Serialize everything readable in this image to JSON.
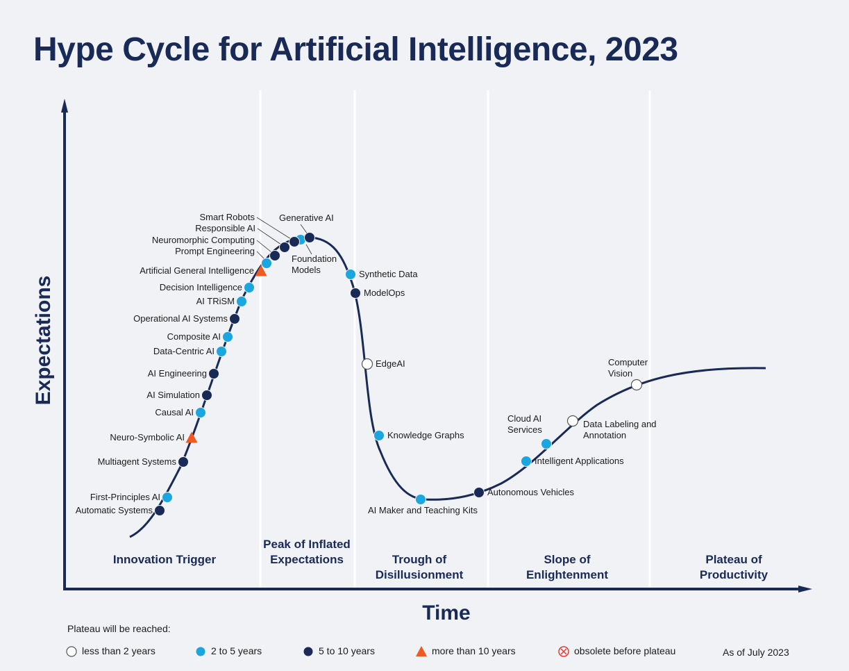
{
  "title": "Hype Cycle for Artificial Intelligence, 2023",
  "axes": {
    "y": "Expectations",
    "x": "Time"
  },
  "phases": [
    "Innovation Trigger",
    "Peak of Inflated Expectations",
    "Trough of Disillusionment",
    "Slope of Enlightenment",
    "Plateau of Productivity"
  ],
  "legend": {
    "heading": "Plateau will be reached:",
    "items": [
      {
        "label": "less than 2 years",
        "marker": "open-circle",
        "color": "#ffffff",
        "technologies": [
          "EdgeAI",
          "Data Labeling and Annotation",
          "Computer Vision"
        ]
      },
      {
        "label": "2 to 5 years",
        "marker": "circle",
        "color": "#1ba6e0",
        "technologies": [
          "First-Principles AI",
          "Causal AI",
          "Data-Centric AI",
          "Composite AI",
          "AI TRiSM",
          "Decision Intelligence",
          "Prompt Engineering",
          "Foundation Models",
          "Synthetic Data",
          "Knowledge Graphs",
          "AI Maker and Teaching Kits",
          "Intelligent Applications",
          "Cloud AI Services"
        ]
      },
      {
        "label": "5 to 10 years",
        "marker": "circle",
        "color": "#1a2a57",
        "technologies": [
          "Automatic Systems",
          "Multiagent Systems",
          "AI Simulation",
          "AI Engineering",
          "Operational AI Systems",
          "Neuromorphic Computing",
          "Responsible AI",
          "Smart Robots",
          "Generative AI",
          "ModelOps",
          "Autonomous Vehicles"
        ]
      },
      {
        "label": "more than 10 years",
        "marker": "triangle",
        "color": "#f05a22",
        "technologies": [
          "Artificial General Intelligence",
          "Neuro-Symbolic AI"
        ]
      },
      {
        "label": "obsolete before plateau",
        "marker": "crossed-circle",
        "color": "#e8392f",
        "technologies": []
      }
    ],
    "note": "As of July 2023"
  }
}
